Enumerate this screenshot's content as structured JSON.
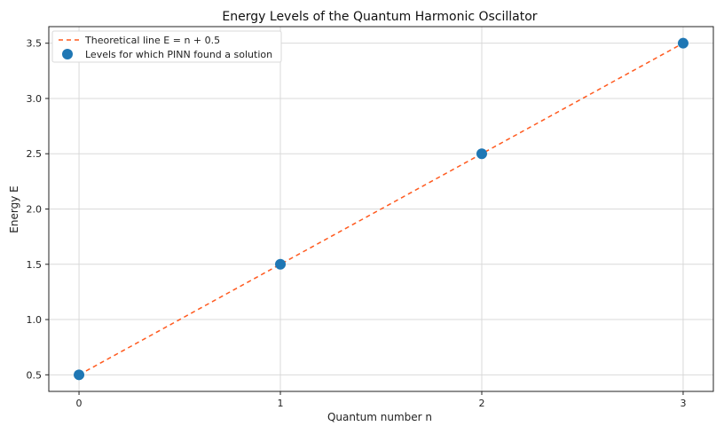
{
  "chart_data": {
    "type": "scatter",
    "title": "Energy Levels of the Quantum Harmonic Oscillator",
    "xlabel": "Quantum number n",
    "ylabel": "Energy E",
    "xlim": [
      -0.15,
      3.15
    ],
    "ylim": [
      0.35,
      3.65
    ],
    "xticks": [
      0,
      1,
      2,
      3
    ],
    "xtick_labels": [
      "0",
      "1",
      "2",
      "3"
    ],
    "yticks": [
      0.5,
      1.0,
      1.5,
      2.0,
      2.5,
      3.0,
      3.5
    ],
    "ytick_labels": [
      "0.5",
      "1.0",
      "1.5",
      "2.0",
      "2.5",
      "3.0",
      "3.5"
    ],
    "grid": true,
    "legend_position": "top-left",
    "series": [
      {
        "name": "Theoretical line E = n + 0.5",
        "kind": "line",
        "style": "dashed",
        "color": "#ff5a1f",
        "x": [
          0,
          1,
          2,
          3
        ],
        "y": [
          0.5,
          1.5,
          2.5,
          3.5
        ]
      },
      {
        "name": "Levels for which PINN found a solution",
        "kind": "scatter",
        "color": "#1f77b4",
        "x": [
          0,
          1,
          2,
          3
        ],
        "y": [
          0.5,
          1.5,
          2.5,
          3.5
        ]
      }
    ]
  }
}
